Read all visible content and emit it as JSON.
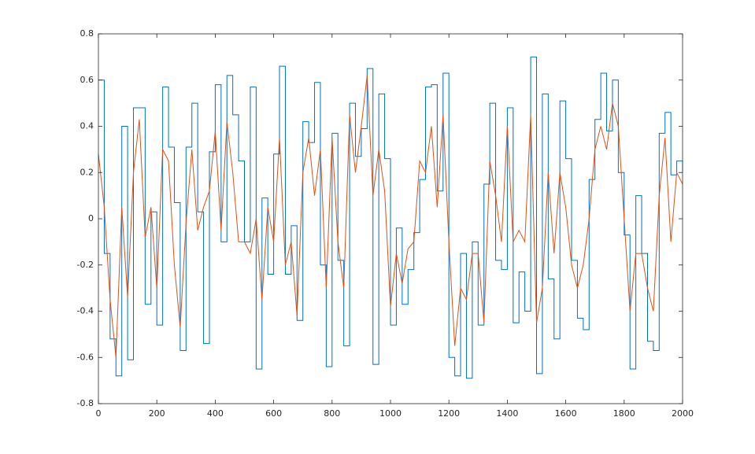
{
  "chart_data": {
    "type": "line",
    "x": [
      0,
      20,
      40,
      60,
      80,
      100,
      120,
      140,
      160,
      180,
      200,
      220,
      240,
      260,
      280,
      300,
      320,
      340,
      360,
      380,
      400,
      420,
      440,
      460,
      480,
      500,
      520,
      540,
      560,
      580,
      600,
      620,
      640,
      660,
      680,
      700,
      720,
      740,
      760,
      780,
      800,
      820,
      840,
      860,
      880,
      900,
      920,
      940,
      960,
      980,
      1000,
      1020,
      1040,
      1060,
      1080,
      1100,
      1120,
      1140,
      1160,
      1180,
      1200,
      1220,
      1240,
      1260,
      1280,
      1300,
      1320,
      1340,
      1360,
      1380,
      1400,
      1420,
      1440,
      1460,
      1480,
      1500,
      1520,
      1540,
      1560,
      1580,
      1600,
      1620,
      1640,
      1660,
      1680,
      1700,
      1720,
      1740,
      1760,
      1780,
      1800,
      1820,
      1840,
      1860,
      1880,
      1900,
      1920,
      1940,
      1960,
      1980,
      2000
    ],
    "series": [
      {
        "color": "#0072bd",
        "step": true,
        "values": [
          0.6,
          -0.15,
          -0.52,
          -0.68,
          0.4,
          -0.61,
          0.48,
          0.48,
          -0.37,
          0.03,
          -0.46,
          0.57,
          0.31,
          0.07,
          -0.57,
          0.31,
          0.5,
          0.03,
          -0.54,
          0.29,
          0.58,
          -0.1,
          0.62,
          0.45,
          0.25,
          -0.1,
          0.57,
          -0.65,
          0.09,
          -0.24,
          0.28,
          0.66,
          -0.24,
          -0.03,
          -0.44,
          0.42,
          0.33,
          0.59,
          -0.2,
          -0.64,
          0.37,
          -0.18,
          -0.55,
          0.5,
          0.27,
          0.39,
          0.65,
          -0.63,
          0.54,
          0.26,
          -0.46,
          -0.04,
          -0.37,
          -0.22,
          -0.06,
          0.17,
          0.57,
          0.58,
          0.12,
          0.63,
          -0.6,
          -0.68,
          -0.15,
          -0.69,
          -0.1,
          -0.46,
          0.15,
          0.5,
          -0.18,
          -0.22,
          0.48,
          -0.45,
          -0.23,
          -0.4,
          0.7,
          -0.67,
          0.54,
          -0.26,
          -0.52,
          0.51,
          0.26,
          -0.18,
          -0.43,
          -0.48,
          0.17,
          0.43,
          0.63,
          0.38,
          0.6,
          0.2,
          -0.07,
          -0.65,
          0.1,
          -0.15,
          -0.53,
          -0.57,
          0.37,
          0.46,
          0.19,
          0.25,
          0.2
        ]
      },
      {
        "color": "#d95319",
        "step": false,
        "values": [
          0.28,
          0.05,
          -0.35,
          -0.6,
          0.05,
          -0.34,
          0.2,
          0.43,
          -0.08,
          0.05,
          -0.3,
          0.3,
          0.25,
          -0.2,
          -0.47,
          -0.02,
          0.3,
          -0.05,
          0.05,
          0.12,
          0.38,
          -0.05,
          0.42,
          0.2,
          -0.1,
          -0.1,
          -0.15,
          0.0,
          -0.35,
          0.05,
          -0.1,
          0.35,
          -0.2,
          -0.1,
          -0.42,
          0.2,
          0.35,
          0.1,
          0.3,
          -0.3,
          0.35,
          -0.1,
          -0.3,
          0.45,
          0.2,
          0.4,
          0.62,
          0.1,
          0.3,
          0.12,
          -0.38,
          -0.15,
          -0.28,
          -0.13,
          -0.1,
          0.25,
          0.2,
          0.4,
          0.05,
          0.45,
          -0.1,
          -0.55,
          -0.3,
          -0.35,
          -0.15,
          -0.15,
          -0.45,
          0.25,
          0.1,
          -0.1,
          0.4,
          -0.1,
          -0.05,
          -0.1,
          0.45,
          -0.45,
          -0.3,
          0.2,
          -0.15,
          0.2,
          0.05,
          -0.2,
          -0.3,
          -0.2,
          0.0,
          0.3,
          0.4,
          0.3,
          0.5,
          0.4,
          0.0,
          -0.4,
          -0.15,
          -0.15,
          -0.3,
          -0.4,
          0.1,
          0.35,
          -0.1,
          0.2,
          0.15
        ]
      }
    ],
    "xlim": [
      0,
      2000
    ],
    "xticks": [
      0,
      200,
      400,
      600,
      800,
      1000,
      1200,
      1400,
      1600,
      1800,
      2000
    ],
    "ylim": [
      -0.8,
      0.8
    ],
    "yticks": [
      -0.8,
      -0.6,
      -0.4,
      -0.2,
      0,
      0.2,
      0.4,
      0.6,
      0.8
    ],
    "grid": false
  }
}
